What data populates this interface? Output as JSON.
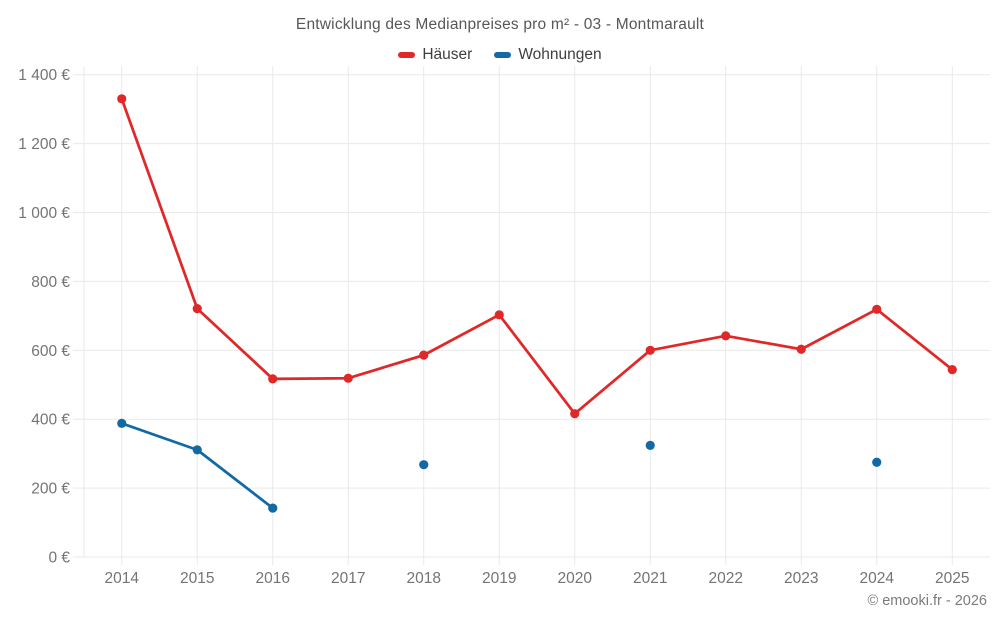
{
  "title": "Entwicklung des Medianpreises pro m² - 03 - Montmarault",
  "attribution": "© emooki.fr - 2026",
  "chart_data": {
    "type": "line",
    "title": "Entwicklung des Medianpreises pro m² - 03 - Montmarault",
    "categories": [
      "2014",
      "2015",
      "2016",
      "2017",
      "2018",
      "2019",
      "2020",
      "2021",
      "2022",
      "2023",
      "2024",
      "2025"
    ],
    "series": [
      {
        "name": "Häuser",
        "color": "#e12828",
        "values": [
          1330,
          721,
          517,
          519,
          586,
          703,
          416,
          600,
          642,
          603,
          719,
          544
        ]
      },
      {
        "name": "Wohnungen",
        "color": "#1269a4",
        "values": [
          388,
          311,
          142,
          null,
          268,
          null,
          null,
          324,
          null,
          null,
          275,
          null
        ]
      }
    ],
    "xlabel": "",
    "ylabel": "",
    "ylim": [
      0,
      1400
    ],
    "ytick_step": 200,
    "ytick_labels": [
      "0 €",
      "200 €",
      "400 €",
      "600 €",
      "800 €",
      "1 000 €",
      "1 200 €",
      "1 400 €"
    ],
    "grid": true,
    "legend_position": "top",
    "grid_color": "#e9e9e9",
    "axis_label_color": "#747474"
  }
}
